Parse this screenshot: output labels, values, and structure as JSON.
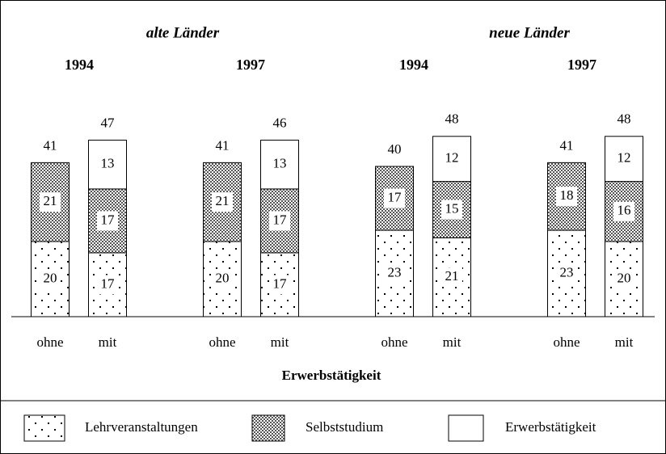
{
  "chart_data": {
    "type": "stacked-bar",
    "groups": [
      {
        "title": "alte Länder",
        "years": [
          "1994",
          "1997"
        ]
      },
      {
        "title": "neue Länder",
        "years": [
          "1994",
          "1997"
        ]
      }
    ],
    "categories": [
      "ohne",
      "mit",
      "ohne",
      "mit",
      "ohne",
      "mit",
      "ohne",
      "mit"
    ],
    "series": [
      {
        "name": "Lehrveranstaltungen",
        "values": [
          20,
          17,
          20,
          17,
          23,
          21,
          23,
          20
        ]
      },
      {
        "name": "Selbststudium",
        "values": [
          21,
          17,
          21,
          17,
          17,
          15,
          18,
          16
        ]
      },
      {
        "name": "Erwerbstätigkeit",
        "values": [
          null,
          13,
          null,
          13,
          null,
          12,
          null,
          12
        ]
      }
    ],
    "totals": [
      41,
      47,
      41,
      46,
      40,
      48,
      41,
      48
    ],
    "x_label": "Erwerbstätigkeit"
  }
}
